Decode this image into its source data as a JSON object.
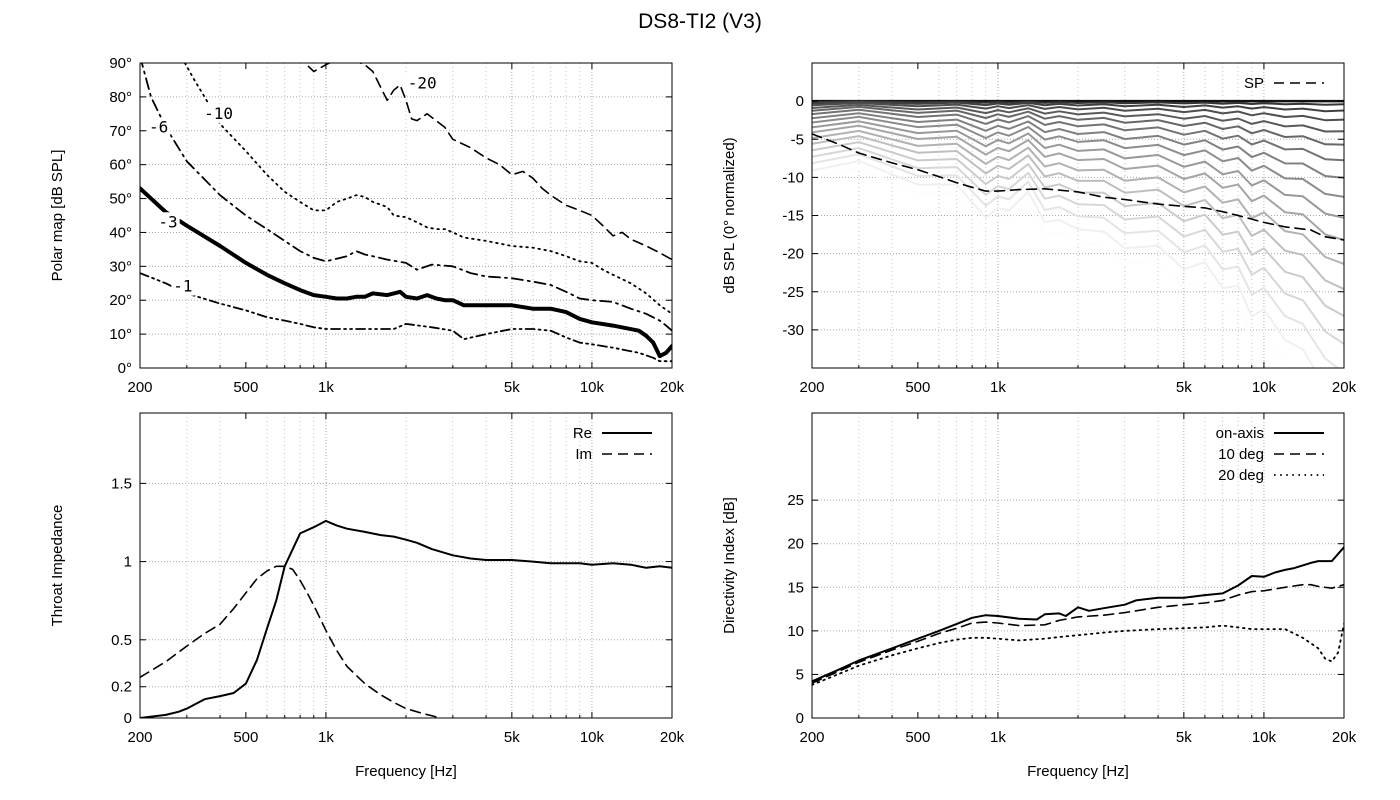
{
  "title": "DS8-TI2 (V3)",
  "chart_data": [
    {
      "id": "polar",
      "type": "line",
      "title": "",
      "xlabel": "",
      "ylabel": "Polar map [dB SPL]",
      "xscale": "log",
      "xlim": [
        200,
        20000
      ],
      "ylim": [
        0,
        90
      ],
      "xticks": [
        200,
        500,
        1000,
        5000,
        10000,
        20000
      ],
      "xtick_labels": [
        "200",
        "500",
        "1k",
        "5k",
        "10k",
        "20k"
      ],
      "yticks": [
        0,
        10,
        20,
        30,
        40,
        50,
        60,
        70,
        80,
        90
      ],
      "ytick_labels": [
        "0°",
        "10°",
        "20°",
        "30°",
        "40°",
        "50°",
        "60°",
        "70°",
        "80°",
        "90°"
      ],
      "grid": true,
      "series": [
        {
          "name": "-1",
          "style": "dashdotdot",
          "label": "-1",
          "label_at": [
            290,
            24
          ],
          "x": [
            200,
            250,
            300,
            400,
            500,
            600,
            700,
            800,
            900,
            1000,
            1200,
            1500,
            1800,
            2000,
            2500,
            3000,
            3300,
            4000,
            5000,
            6000,
            7000,
            8000,
            9000,
            10000,
            12000,
            15000,
            17000,
            18000,
            19000,
            20000
          ],
          "y": [
            28,
            25,
            22,
            19,
            17,
            15,
            14,
            13,
            12,
            11.5,
            11.5,
            11.5,
            11.5,
            13,
            12,
            11,
            8.5,
            10,
            11.5,
            11.5,
            11,
            9,
            7.5,
            7,
            6,
            4.5,
            3,
            2,
            2,
            2
          ]
        },
        {
          "name": "-3",
          "style": "thick",
          "label": "-3",
          "label_at": [
            255,
            43
          ],
          "x": [
            200,
            250,
            300,
            400,
            500,
            600,
            700,
            800,
            900,
            1000,
            1100,
            1200,
            1300,
            1400,
            1500,
            1700,
            1800,
            1900,
            2000,
            2200,
            2400,
            2600,
            2800,
            3000,
            3300,
            4000,
            5000,
            6000,
            7000,
            8000,
            9000,
            10000,
            12000,
            15000,
            16000,
            17000,
            18000,
            19000,
            20000
          ],
          "y": [
            53,
            46,
            42,
            36,
            31,
            27.5,
            25,
            23,
            21.5,
            21,
            20.5,
            20.5,
            21,
            21,
            22,
            21.5,
            22,
            22.5,
            21,
            20.5,
            21.5,
            20.5,
            20,
            20,
            18.5,
            18.5,
            18.5,
            17.5,
            17.5,
            16.5,
            14.5,
            13.5,
            12.5,
            11,
            9.5,
            7.5,
            3.5,
            4.5,
            6.5
          ]
        },
        {
          "name": "-6",
          "style": "dashdot",
          "label": "-6",
          "label_at": [
            235,
            71
          ],
          "x": [
            200,
            220,
            250,
            300,
            400,
            500,
            600,
            700,
            800,
            900,
            1000,
            1200,
            1300,
            1400,
            1500,
            1700,
            2000,
            2200,
            2500,
            3000,
            3500,
            4000,
            5000,
            6000,
            7000,
            8000,
            9000,
            10000,
            12000,
            14000,
            16000,
            18000,
            19000,
            20000
          ],
          "y": [
            92,
            80,
            71,
            61,
            51,
            45,
            41,
            37.5,
            34.5,
            32.5,
            31.5,
            33,
            34.5,
            33.5,
            33,
            32,
            31,
            29,
            30.5,
            30,
            28,
            27,
            26.5,
            25.5,
            24.5,
            22.5,
            20.5,
            20,
            19.5,
            17.5,
            16,
            14,
            12.5,
            11
          ]
        },
        {
          "name": "-10",
          "style": "dotted",
          "label": "-10",
          "label_at": [
            395,
            75
          ],
          "x": [
            295,
            320,
            350,
            400,
            500,
            600,
            700,
            800,
            900,
            1000,
            1100,
            1200,
            1300,
            1400,
            1500,
            1700,
            1800,
            2000,
            2200,
            2400,
            2600,
            2800,
            3000,
            3300,
            4000,
            5000,
            6000,
            7000,
            8000,
            9000,
            10000,
            11000,
            12000,
            14000,
            16000,
            18000,
            20000
          ],
          "y": [
            90,
            85,
            80,
            72,
            64,
            57,
            52,
            49,
            46.5,
            46.5,
            49,
            50,
            51,
            50.5,
            49,
            47.5,
            45,
            44.5,
            43,
            41.5,
            41,
            41,
            40,
            38.5,
            37.5,
            36,
            35.5,
            34.5,
            33,
            31.5,
            31,
            29,
            27.5,
            25,
            22,
            18.5,
            16
          ]
        },
        {
          "name": "-20",
          "style": "dashed",
          "label": "-20",
          "label_at": [
            2300,
            84
          ],
          "x": [
            860,
            900,
            1000,
            1100,
            1200,
            1300,
            1400,
            1500,
            1700,
            1800,
            1900,
            2000,
            2100,
            2200,
            2400,
            2800,
            3000,
            3500,
            4000,
            4500,
            5000,
            5500,
            6000,
            6500,
            7000,
            8000,
            9000,
            10000,
            11000,
            12000,
            13000,
            14000,
            16000,
            18000,
            20000
          ],
          "y": [
            89,
            87.5,
            89.5,
            91,
            91,
            90.5,
            89.5,
            87.5,
            79,
            82,
            83.5,
            79,
            73.5,
            73,
            75,
            71,
            67.5,
            65,
            62,
            60,
            57,
            58,
            56,
            53,
            51,
            48,
            46.5,
            45,
            42,
            39,
            40,
            38,
            36,
            34,
            32
          ]
        }
      ]
    },
    {
      "id": "normalized",
      "type": "line",
      "title": "",
      "xlabel": "",
      "ylabel": "dB SPL (0° normalized)",
      "xscale": "log",
      "xlim": [
        200,
        20000
      ],
      "ylim": [
        -35,
        5
      ],
      "xticks": [
        200,
        500,
        1000,
        5000,
        10000,
        20000
      ],
      "xtick_labels": [
        "200",
        "500",
        "1k",
        "5k",
        "10k",
        "20k"
      ],
      "yticks": [
        0,
        -5,
        -10,
        -15,
        -20,
        -25,
        -30
      ],
      "ytick_labels": [
        "0",
        "-5",
        "-10",
        "-15",
        "-20",
        "-25",
        "-30"
      ],
      "grid": true,
      "legend": [
        {
          "name": "SP",
          "style": "dashed"
        }
      ],
      "legend_position": "top-right",
      "sp": {
        "x": [
          200,
          250,
          300,
          400,
          500,
          600,
          700,
          800,
          900,
          1000,
          1200,
          1500,
          2000,
          2500,
          3000,
          4000,
          5000,
          6000,
          7000,
          8000,
          10000,
          12000,
          15000,
          17000,
          20000
        ],
        "y": [
          -4.3,
          -5.6,
          -6.8,
          -8.1,
          -9.0,
          -9.9,
          -10.7,
          -11.3,
          -11.8,
          -11.8,
          -11.6,
          -11.5,
          -11.9,
          -12.6,
          -12.9,
          -13.5,
          -13.8,
          -14.0,
          -14.5,
          -15.0,
          -15.9,
          -16.5,
          -16.9,
          -17.8,
          -18.2
        ]
      },
      "polar_curves": {
        "angles_deg": [
          10,
          15,
          20,
          25,
          30,
          35,
          40,
          45,
          50,
          55,
          60,
          65,
          70,
          75,
          80,
          85,
          90
        ],
        "x": [
          200,
          300,
          500,
          700,
          900,
          1000,
          1100,
          1300,
          1500,
          1700,
          2000,
          2500,
          3000,
          4000,
          5000,
          6000,
          7000,
          8000,
          9000,
          10000,
          12000,
          14000,
          17000,
          20000
        ],
        "tilt": [
          0,
          0.02,
          0.06,
          0.12,
          0.2,
          0.22,
          0.17,
          0.15,
          0.22,
          0.27,
          0.25,
          0.32,
          0.33,
          0.38,
          0.42,
          0.45,
          0.5,
          0.55,
          0.62,
          0.65,
          0.72,
          0.82,
          0.92,
          1.05
        ],
        "base_at_200": [
          -0.1,
          -0.2,
          -0.4,
          -0.7,
          -1.0,
          -1.4,
          -1.9,
          -2.4,
          -3.0,
          -3.6,
          -4.3,
          -5.0,
          -5.8,
          -6.6,
          -7.4,
          -8.3,
          -9.2
        ]
      }
    },
    {
      "id": "impedance",
      "type": "line",
      "title": "",
      "xlabel": "Frequency [Hz]",
      "ylabel": "Throat Impedance",
      "xscale": "log",
      "xlim": [
        200,
        20000
      ],
      "ylim": [
        0,
        1.95
      ],
      "xticks": [
        200,
        500,
        1000,
        5000,
        10000,
        20000
      ],
      "xtick_labels": [
        "200",
        "500",
        "1k",
        "5k",
        "10k",
        "20k"
      ],
      "yticks": [
        0,
        0.2,
        0.5,
        1,
        1.5
      ],
      "ytick_labels": [
        "0",
        "0.2",
        "0.5",
        "1",
        "1.5"
      ],
      "grid": true,
      "legend_position": "top-right",
      "series": [
        {
          "name": "Re",
          "style": "solid",
          "x": [
            200,
            250,
            280,
            300,
            350,
            400,
            450,
            500,
            550,
            600,
            650,
            700,
            800,
            900,
            1000,
            1100,
            1200,
            1400,
            1600,
            1800,
            2000,
            2200,
            2500,
            3000,
            3500,
            4000,
            5000,
            6000,
            7000,
            8000,
            9000,
            10000,
            12000,
            14000,
            16000,
            18000,
            20000
          ],
          "y": [
            0.0,
            0.02,
            0.04,
            0.06,
            0.12,
            0.14,
            0.16,
            0.22,
            0.37,
            0.57,
            0.75,
            0.97,
            1.18,
            1.22,
            1.26,
            1.23,
            1.21,
            1.19,
            1.17,
            1.16,
            1.14,
            1.12,
            1.08,
            1.04,
            1.02,
            1.01,
            1.01,
            1.0,
            0.99,
            0.99,
            0.99,
            0.98,
            0.99,
            0.98,
            0.96,
            0.97,
            0.96
          ]
        },
        {
          "name": "Im",
          "style": "dashed",
          "x": [
            200,
            250,
            300,
            350,
            400,
            450,
            500,
            550,
            600,
            650,
            700,
            750,
            800,
            850,
            900,
            1000,
            1100,
            1200,
            1400,
            1600,
            1800,
            2000,
            2300,
            2700
          ],
          "y": [
            0.26,
            0.36,
            0.46,
            0.54,
            0.6,
            0.7,
            0.8,
            0.89,
            0.94,
            0.97,
            0.97,
            0.95,
            0.88,
            0.8,
            0.72,
            0.56,
            0.43,
            0.33,
            0.22,
            0.15,
            0.1,
            0.06,
            0.03,
            0.0
          ]
        }
      ]
    },
    {
      "id": "directivity",
      "type": "line",
      "title": "",
      "xlabel": "Frequency [Hz]",
      "ylabel": "Directivity Index [dB]",
      "xscale": "log",
      "xlim": [
        200,
        20000
      ],
      "ylim": [
        0,
        35
      ],
      "xticks": [
        200,
        500,
        1000,
        5000,
        10000,
        20000
      ],
      "xtick_labels": [
        "200",
        "500",
        "1k",
        "5k",
        "10k",
        "20k"
      ],
      "yticks": [
        0,
        5,
        10,
        15,
        20,
        25
      ],
      "ytick_labels": [
        "0",
        "5",
        "10",
        "15",
        "20",
        "25"
      ],
      "grid": true,
      "legend_position": "top-right",
      "series": [
        {
          "name": "on-axis",
          "style": "solid",
          "x": [
            200,
            250,
            300,
            400,
            500,
            600,
            700,
            800,
            900,
            1000,
            1200,
            1400,
            1500,
            1700,
            1800,
            2000,
            2200,
            2500,
            3000,
            3300,
            4000,
            5000,
            6000,
            7000,
            8000,
            9000,
            10000,
            11000,
            12000,
            13000,
            15000,
            16000,
            18000,
            20000
          ],
          "y": [
            4.2,
            5.5,
            6.6,
            8.0,
            9.1,
            10.0,
            10.8,
            11.5,
            11.8,
            11.7,
            11.4,
            11.3,
            11.9,
            12.0,
            11.7,
            12.7,
            12.3,
            12.6,
            13.0,
            13.5,
            13.8,
            13.8,
            14.1,
            14.3,
            15.2,
            16.3,
            16.2,
            16.7,
            17.0,
            17.2,
            17.8,
            18.0,
            18.0,
            19.6
          ]
        },
        {
          "name": "10 deg",
          "style": "dashed",
          "x": [
            200,
            250,
            300,
            400,
            500,
            600,
            700,
            800,
            900,
            1000,
            1200,
            1500,
            1700,
            2000,
            2500,
            3000,
            4000,
            5000,
            6000,
            7000,
            8000,
            9000,
            10000,
            12000,
            14000,
            15000,
            16000,
            18000,
            20000
          ],
          "y": [
            4.0,
            5.3,
            6.4,
            7.8,
            8.8,
            9.7,
            10.3,
            10.9,
            11.0,
            10.9,
            10.6,
            10.7,
            11.2,
            11.6,
            11.8,
            12.1,
            12.7,
            13.0,
            13.2,
            13.5,
            14.1,
            14.5,
            14.6,
            15.0,
            15.3,
            15.3,
            15.1,
            14.9,
            15.3
          ]
        },
        {
          "name": "20 deg",
          "style": "dotted",
          "x": [
            200,
            250,
            300,
            400,
            500,
            600,
            700,
            800,
            900,
            1000,
            1200,
            1500,
            1700,
            2000,
            2500,
            3000,
            4000,
            5000,
            6000,
            7000,
            8000,
            9000,
            10000,
            12000,
            14000,
            16000,
            17000,
            18000,
            19000,
            20000
          ],
          "y": [
            3.8,
            5.0,
            6.0,
            7.2,
            8.0,
            8.6,
            9.0,
            9.2,
            9.2,
            9.1,
            8.9,
            9.1,
            9.3,
            9.5,
            9.8,
            10.0,
            10.2,
            10.3,
            10.4,
            10.6,
            10.4,
            10.2,
            10.2,
            10.2,
            9.2,
            8.0,
            6.8,
            6.5,
            7.5,
            10.8
          ]
        }
      ]
    }
  ]
}
